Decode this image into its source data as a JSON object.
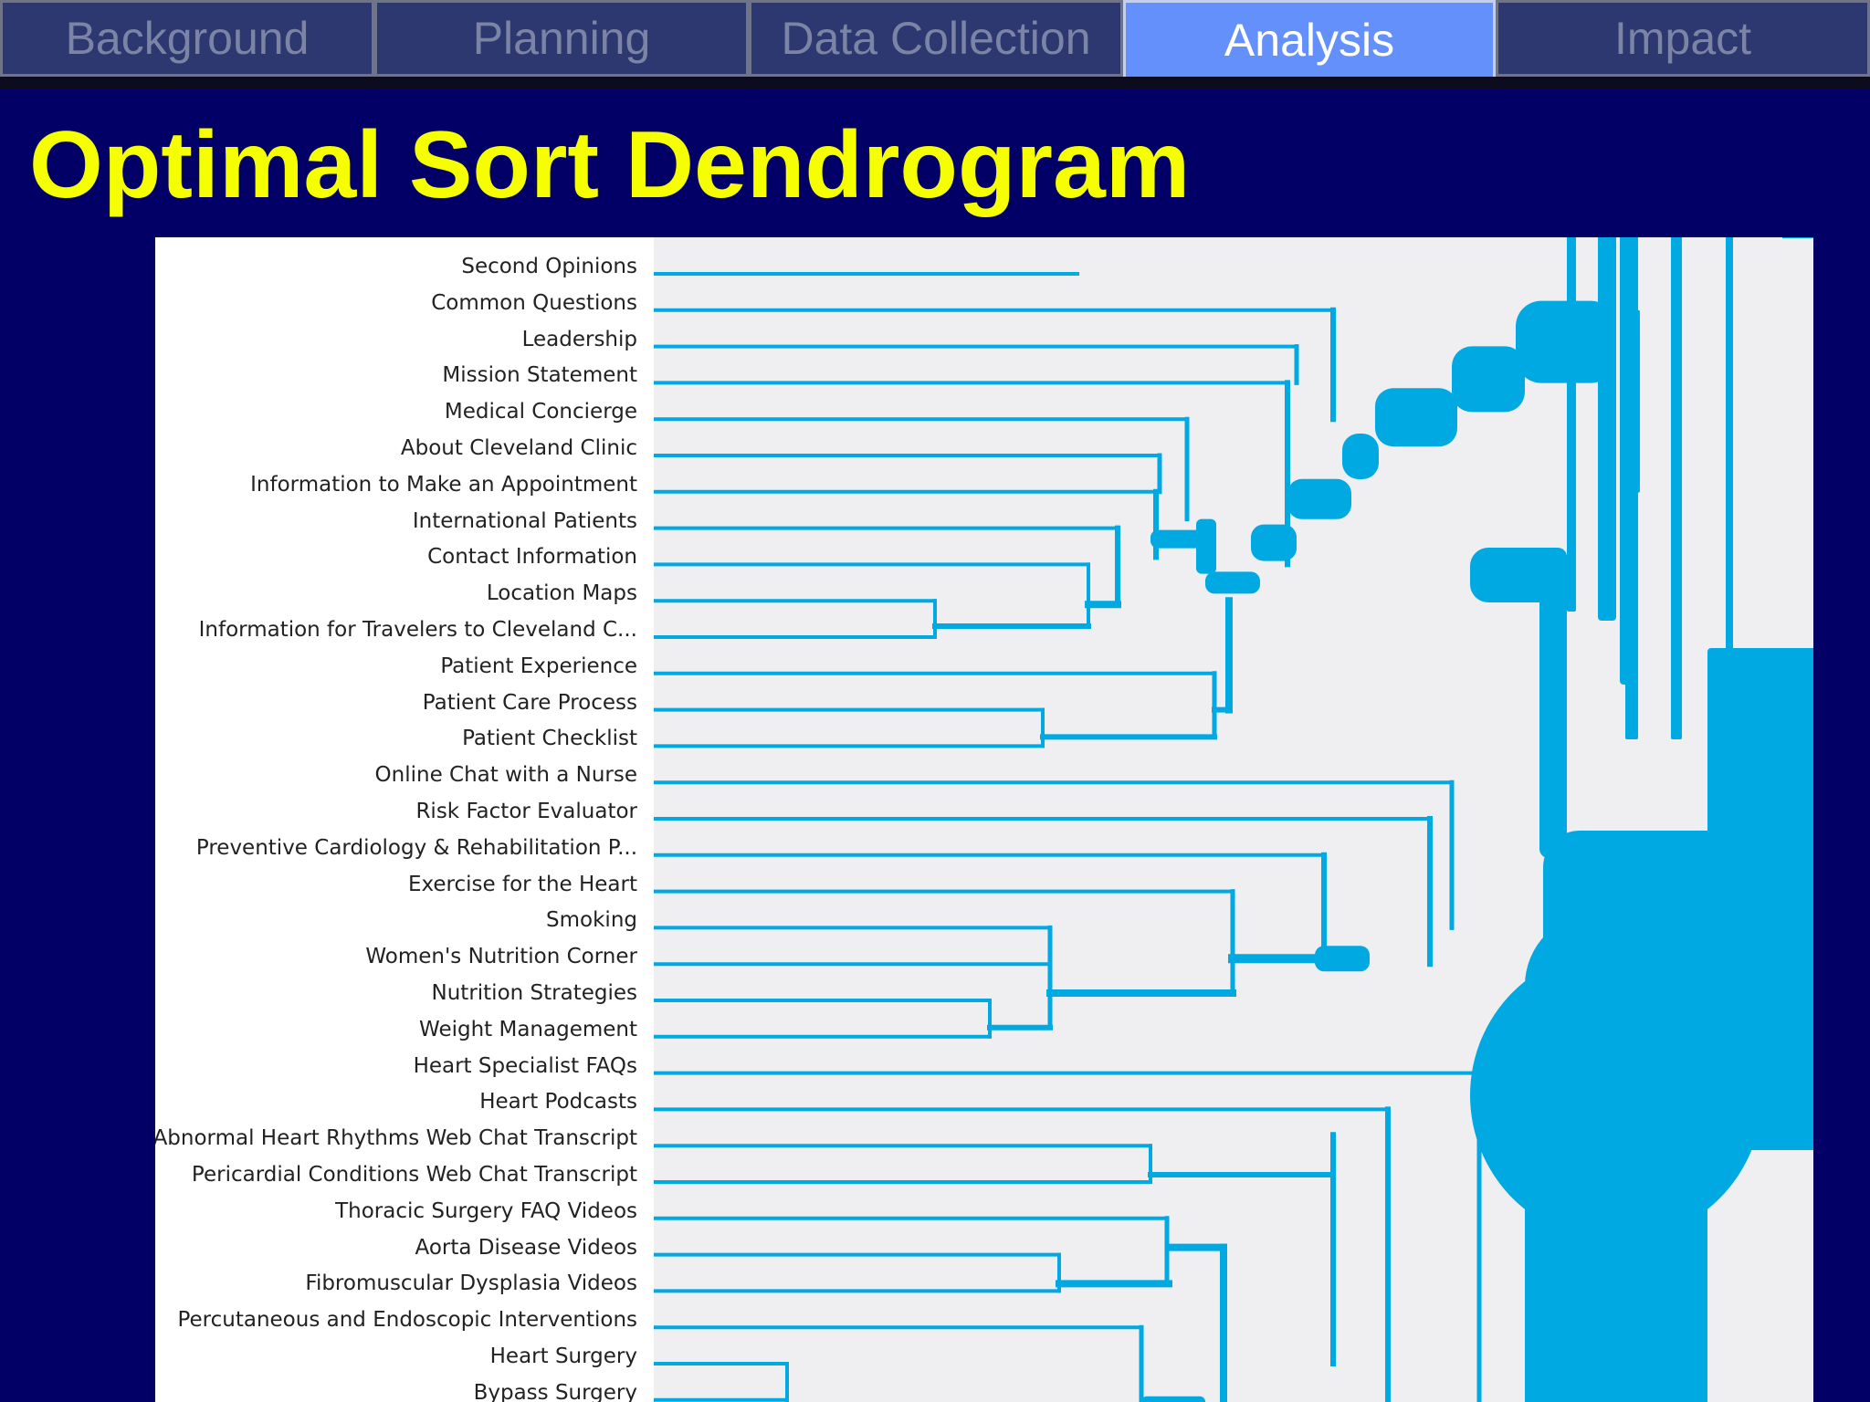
{
  "tabs": [
    {
      "label": "Background",
      "active": false
    },
    {
      "label": "Planning",
      "active": false
    },
    {
      "label": "Data Collection",
      "active": false
    },
    {
      "label": "Analysis",
      "active": true
    },
    {
      "label": "Impact",
      "active": false
    }
  ],
  "title": "Optimal Sort Dendrogram",
  "colors": {
    "background": "#020066",
    "title": "#f6ff00",
    "active_tab": "#6490fb",
    "tab": "#2d3770",
    "branch": "#00a9e2"
  },
  "leaves": [
    "Second Opinions",
    "Common Questions",
    "Leadership",
    "Mission Statement",
    "Medical Concierge",
    "About Cleveland Clinic",
    "Information to Make an Appointment",
    "International Patients",
    "Contact Information",
    "Location Maps",
    "Information for Travelers to Cleveland C...",
    "Patient Experience",
    "Patient Care Process",
    "Patient Checklist",
    "Online Chat with a Nurse",
    "Risk Factor Evaluator",
    "Preventive Cardiology & Rehabilitation P...",
    "Exercise for the Heart",
    "Smoking",
    "Women's Nutrition Corner",
    "Nutrition Strategies",
    "Weight Management",
    "Heart Specialist FAQs",
    "Heart Podcasts",
    "Abnormal Heart Rhythms Web Chat Transcript",
    "Pericardial Conditions Web Chat Transcript",
    "Thoracic Surgery FAQ Videos",
    "Aorta Disease Videos",
    "Fibromuscular Dysplasia Videos",
    "Percutaneous and Endoscopic Interventions",
    "Heart Surgery",
    "Bypass Surgery"
  ]
}
